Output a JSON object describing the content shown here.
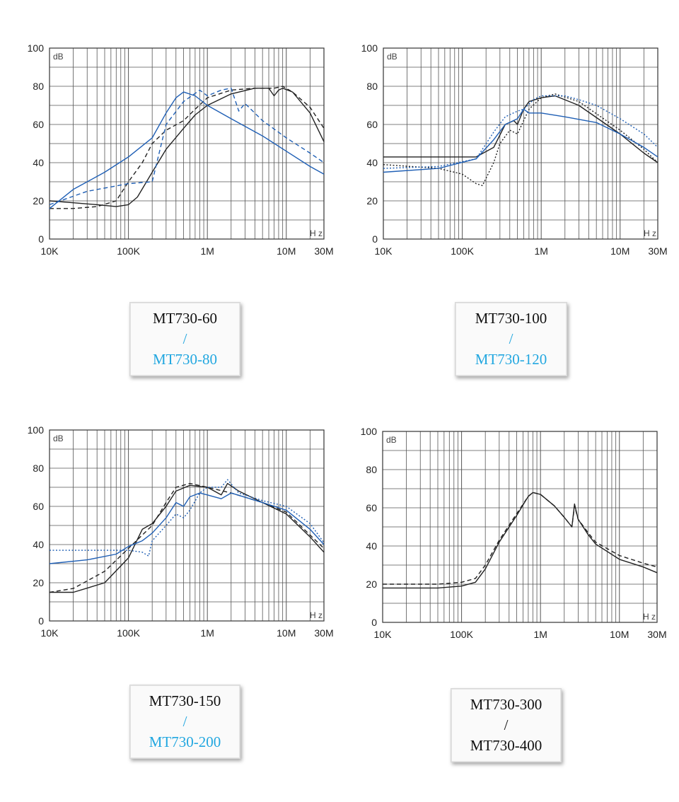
{
  "colors": {
    "black": "#222222",
    "blue": "#1f5fb5",
    "blue_label": "#22a7e0",
    "grid": "#555555"
  },
  "chart_data": [
    {
      "type": "line",
      "x_scale": "log",
      "xlim": [
        10000,
        30000000
      ],
      "ylim": [
        0,
        100
      ],
      "x_ticks": [
        {
          "v": 10000,
          "t": "10K"
        },
        {
          "v": 100000,
          "t": "100K"
        },
        {
          "v": 1000000,
          "t": "1M"
        },
        {
          "v": 10000000,
          "t": "10M"
        },
        {
          "v": 30000000,
          "t": "30M"
        }
      ],
      "y_ticks": [
        0,
        20,
        40,
        60,
        80,
        100
      ],
      "unit_y": "dB",
      "unit_x": "Hz",
      "grid": true,
      "series": [
        {
          "color": "black",
          "dash": "solid",
          "x": [
            10000,
            20000,
            40000,
            70000,
            100000,
            130000,
            200000,
            300000,
            500000,
            700000,
            1000000,
            2000000,
            4000000,
            6000000,
            7000000,
            8000000,
            9000000,
            12000000,
            20000000,
            30000000
          ],
          "y": [
            20,
            19,
            18,
            17,
            18,
            22,
            35,
            47,
            58,
            65,
            70,
            76,
            79,
            79,
            75,
            78,
            79,
            77,
            66,
            51
          ]
        },
        {
          "color": "black",
          "dash": "dash",
          "x": [
            10000,
            20000,
            40000,
            70000,
            100000,
            150000,
            200000,
            300000,
            500000,
            700000,
            1000000,
            2000000,
            4000000,
            7000000,
            9000000,
            12000000,
            20000000,
            30000000
          ],
          "y": [
            16,
            16,
            17,
            20,
            30,
            40,
            50,
            57,
            62,
            68,
            74,
            78,
            79,
            79,
            80,
            77,
            69,
            58
          ]
        },
        {
          "color": "blue",
          "dash": "solid",
          "x": [
            10000,
            20000,
            50000,
            100000,
            200000,
            300000,
            400000,
            500000,
            700000,
            1000000,
            2000000,
            5000000,
            10000000,
            20000000,
            30000000
          ],
          "y": [
            16,
            26,
            35,
            43,
            53,
            66,
            74,
            77,
            75,
            70,
            63,
            54,
            46,
            38,
            34
          ]
        },
        {
          "color": "blue",
          "dash": "dash",
          "x": [
            10000,
            30000,
            100000,
            200000,
            300000,
            500000,
            800000,
            1000000,
            1500000,
            2000000,
            2500000,
            3000000,
            5000000,
            10000000,
            20000000,
            30000000
          ],
          "y": [
            18,
            25,
            29,
            30,
            60,
            72,
            78,
            75,
            78,
            79,
            67,
            71,
            62,
            53,
            45,
            40
          ]
        }
      ]
    },
    {
      "type": "line",
      "x_scale": "log",
      "xlim": [
        10000,
        30000000
      ],
      "ylim": [
        0,
        100
      ],
      "x_ticks": [
        {
          "v": 10000,
          "t": "10K"
        },
        {
          "v": 100000,
          "t": "100K"
        },
        {
          "v": 1000000,
          "t": "1M"
        },
        {
          "v": 10000000,
          "t": "10M"
        },
        {
          "v": 30000000,
          "t": "30M"
        }
      ],
      "y_ticks": [
        0,
        20,
        40,
        60,
        80,
        100
      ],
      "unit_y": "dB",
      "unit_x": "Hz",
      "grid": true,
      "series": [
        {
          "color": "black",
          "dash": "solid",
          "x": [
            10000,
            50000,
            150000,
            250000,
            350000,
            450000,
            500000,
            600000,
            700000,
            1000000,
            1500000,
            3000000,
            10000000,
            20000000,
            30000000
          ],
          "y": [
            43,
            43,
            43,
            48,
            60,
            62,
            60,
            68,
            72,
            74,
            75,
            70,
            55,
            45,
            40
          ]
        },
        {
          "color": "black",
          "dash": "dot",
          "x": [
            10000,
            50000,
            100000,
            150000,
            180000,
            250000,
            300000,
            400000,
            500000,
            700000,
            1000000,
            1500000,
            3000000,
            10000000,
            20000000,
            30000000
          ],
          "y": [
            39,
            37,
            34,
            29,
            28,
            40,
            50,
            57,
            55,
            68,
            74,
            76,
            72,
            57,
            47,
            40
          ]
        },
        {
          "color": "blue",
          "dash": "solid",
          "x": [
            10000,
            50000,
            150000,
            250000,
            350000,
            500000,
            600000,
            700000,
            1000000,
            2000000,
            5000000,
            10000000,
            20000000,
            30000000
          ],
          "y": [
            35,
            37,
            42,
            52,
            60,
            63,
            68,
            66,
            66,
            64,
            61,
            55,
            48,
            43
          ]
        },
        {
          "color": "blue",
          "dash": "dot",
          "x": [
            10000,
            50000,
            150000,
            250000,
            350000,
            500000,
            600000,
            800000,
            1000000,
            2000000,
            3000000,
            5000000,
            10000000,
            20000000,
            30000000
          ],
          "y": [
            37,
            38,
            42,
            56,
            64,
            67,
            68,
            73,
            75,
            75,
            73,
            70,
            63,
            55,
            48
          ]
        }
      ]
    },
    {
      "type": "line",
      "x_scale": "log",
      "xlim": [
        10000,
        30000000
      ],
      "ylim": [
        0,
        100
      ],
      "x_ticks": [
        {
          "v": 10000,
          "t": "10K"
        },
        {
          "v": 100000,
          "t": "100K"
        },
        {
          "v": 1000000,
          "t": "1M"
        },
        {
          "v": 10000000,
          "t": "10M"
        },
        {
          "v": 30000000,
          "t": "30M"
        }
      ],
      "y_ticks": [
        0,
        20,
        40,
        60,
        80,
        100
      ],
      "unit_y": "dB",
      "unit_x": "Hz",
      "grid": true,
      "series": [
        {
          "color": "black",
          "dash": "solid",
          "x": [
            10000,
            20000,
            50000,
            100000,
            150000,
            200000,
            300000,
            400000,
            600000,
            1000000,
            1500000,
            1800000,
            2500000,
            5000000,
            10000000,
            20000000,
            30000000
          ],
          "y": [
            15,
            15,
            20,
            33,
            48,
            51,
            60,
            68,
            71,
            70,
            66,
            72,
            68,
            62,
            56,
            44,
            36
          ]
        },
        {
          "color": "black",
          "dash": "dash",
          "x": [
            10000,
            20000,
            50000,
            100000,
            150000,
            200000,
            300000,
            400000,
            600000,
            1000000,
            2000000,
            5000000,
            10000000,
            20000000,
            30000000
          ],
          "y": [
            15,
            17,
            26,
            38,
            45,
            50,
            62,
            70,
            72,
            70,
            67,
            62,
            57,
            45,
            38
          ]
        },
        {
          "color": "blue",
          "dash": "solid",
          "x": [
            10000,
            30000,
            70000,
            100000,
            150000,
            200000,
            300000,
            400000,
            500000,
            600000,
            800000,
            1000000,
            1500000,
            2000000,
            5000000,
            10000000,
            20000000,
            30000000
          ],
          "y": [
            30,
            32,
            35,
            39,
            42,
            46,
            54,
            62,
            60,
            65,
            67,
            66,
            64,
            67,
            62,
            58,
            48,
            40
          ]
        },
        {
          "color": "blue",
          "dash": "dot",
          "x": [
            10000,
            50000,
            100000,
            150000,
            180000,
            200000,
            300000,
            400000,
            500000,
            600000,
            800000,
            1000000,
            1500000,
            1800000,
            2500000,
            5000000,
            10000000,
            20000000,
            30000000
          ],
          "y": [
            37,
            37,
            37,
            36,
            34,
            42,
            50,
            56,
            54,
            58,
            67,
            70,
            70,
            74,
            67,
            63,
            60,
            51,
            41
          ]
        }
      ]
    },
    {
      "type": "line",
      "x_scale": "log",
      "xlim": [
        10000,
        30000000
      ],
      "ylim": [
        0,
        100
      ],
      "x_ticks": [
        {
          "v": 10000,
          "t": "10K"
        },
        {
          "v": 100000,
          "t": "100K"
        },
        {
          "v": 1000000,
          "t": "1M"
        },
        {
          "v": 10000000,
          "t": "10M"
        },
        {
          "v": 30000000,
          "t": "30M"
        }
      ],
      "y_ticks": [
        0,
        20,
        40,
        60,
        80,
        100
      ],
      "unit_y": "dB",
      "unit_x": "Hz",
      "grid": true,
      "series": [
        {
          "color": "black",
          "dash": "solid",
          "x": [
            10000,
            50000,
            100000,
            150000,
            200000,
            300000,
            500000,
            700000,
            800000,
            1000000,
            1500000,
            2000000,
            2500000,
            2700000,
            3000000,
            4000000,
            5000000,
            10000000,
            20000000,
            30000000
          ],
          "y": [
            18,
            18,
            19,
            21,
            28,
            42,
            56,
            66,
            68,
            67,
            61,
            55,
            50,
            62,
            54,
            46,
            41,
            33,
            29,
            26
          ]
        },
        {
          "color": "black",
          "dash": "dash",
          "x": [
            10000,
            50000,
            100000,
            150000,
            200000,
            300000,
            500000,
            700000,
            800000,
            1000000,
            1500000,
            2000000,
            2500000,
            2700000,
            3000000,
            4000000,
            5000000,
            10000000,
            20000000,
            30000000
          ],
          "y": [
            20,
            20,
            21,
            23,
            30,
            43,
            57,
            66,
            68,
            67,
            61,
            55,
            50,
            61,
            54,
            47,
            42,
            35,
            31,
            29
          ]
        }
      ]
    }
  ],
  "labels": [
    {
      "top": "MT730-60",
      "sep": "/",
      "bottom": "MT730-80"
    },
    {
      "top": "MT730-100",
      "sep": "/",
      "bottom": "MT730-120"
    },
    {
      "top": "MT730-150",
      "sep": "/",
      "bottom": "MT730-200"
    },
    {
      "top": "MT730-300",
      "sep": "/",
      "bottom": "MT730-400"
    }
  ]
}
